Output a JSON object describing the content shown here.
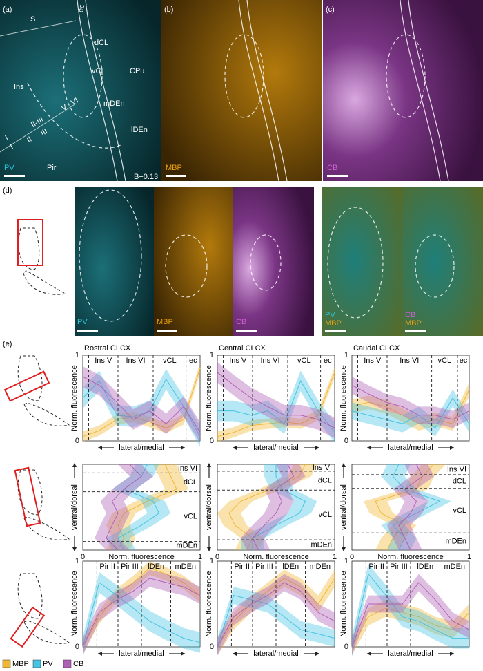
{
  "figure": {
    "row_a": {
      "panels": [
        {
          "letter": "(a)",
          "stain": "PV",
          "color": "#2cc6d6"
        },
        {
          "letter": "(b)",
          "stain": "MBP",
          "color": "#e8a010"
        },
        {
          "letter": "(c)",
          "stain": "CB",
          "color": "#c050c8"
        }
      ],
      "annotations": [
        "S",
        "ec",
        "dCL",
        "vCL",
        "CPu",
        "Ins",
        "mDEn",
        "lDEn",
        "Pir",
        "I",
        "II-III",
        "V",
        "VI",
        "I",
        "II",
        "III",
        "B+0.13"
      ]
    },
    "row_d": {
      "letter": "(d)",
      "labels": [
        "PV",
        "MBP",
        "CB",
        "PV",
        "MBP",
        "CB",
        "MBP"
      ]
    },
    "row_e": {
      "letter": "(e)"
    },
    "legend": [
      {
        "name": "MBP",
        "color": "#f2b632"
      },
      {
        "name": "PV",
        "color": "#45c4e4"
      },
      {
        "name": "CB",
        "color": "#b060b4"
      }
    ]
  },
  "chart_data": [
    {
      "type": "line",
      "orientation": "horizontal",
      "title": "Rostral CLCX",
      "x_label": "lateral/medial",
      "y_label": "Norm. fluorescence",
      "x": [
        0,
        0.14,
        0.29,
        0.43,
        0.57,
        0.71,
        0.86,
        1
      ],
      "xlim": [
        0,
        1
      ],
      "ylim": [
        0,
        1
      ],
      "yticks": [
        0,
        1
      ],
      "boundaries": [
        0.05,
        0.3,
        0.6,
        0.88
      ],
      "regions": [
        "Ins V",
        "Ins VI",
        "vCL",
        "ec"
      ],
      "series": [
        {
          "color": "#f2b632",
          "values": [
            0.05,
            0.12,
            0.25,
            0.28,
            0.22,
            0.15,
            0.25,
            0.85
          ],
          "spread": 0.06
        },
        {
          "color": "#45c4e4",
          "values": [
            0.5,
            0.7,
            0.3,
            0.28,
            0.35,
            0.72,
            0.4,
            0.05
          ],
          "spread": 0.12
        },
        {
          "color": "#b060b4",
          "values": [
            0.75,
            0.65,
            0.45,
            0.25,
            0.35,
            0.2,
            0.4,
            0.1
          ],
          "spread": 0.12
        }
      ]
    },
    {
      "type": "line",
      "orientation": "horizontal",
      "title": "Central CLCX",
      "x_label": "lateral/medial",
      "y_label": "Norm. fluorescence",
      "x": [
        0,
        0.14,
        0.29,
        0.43,
        0.57,
        0.71,
        0.86,
        1
      ],
      "xlim": [
        0,
        1
      ],
      "ylim": [
        0,
        1
      ],
      "yticks": [
        0,
        1
      ],
      "boundaries": [
        0.05,
        0.3,
        0.6,
        0.88
      ],
      "regions": [
        "Ins V",
        "Ins VI",
        "vCL",
        "ec"
      ],
      "series": [
        {
          "color": "#f2b632",
          "values": [
            0.05,
            0.1,
            0.18,
            0.2,
            0.22,
            0.2,
            0.3,
            0.8
          ],
          "spread": 0.06
        },
        {
          "color": "#45c4e4",
          "values": [
            0.35,
            0.35,
            0.3,
            0.35,
            0.2,
            0.7,
            0.35,
            0.1
          ],
          "spread": 0.12
        },
        {
          "color": "#b060b4",
          "values": [
            0.8,
            0.65,
            0.5,
            0.4,
            0.3,
            0.3,
            0.25,
            0.15
          ],
          "spread": 0.12
        }
      ]
    },
    {
      "type": "line",
      "orientation": "horizontal",
      "title": "Caudal CLCX",
      "x_label": "lateral/medial",
      "y_label": "Norm. fluorescence",
      "x": [
        0,
        0.14,
        0.29,
        0.43,
        0.57,
        0.71,
        0.86,
        1
      ],
      "xlim": [
        0,
        1
      ],
      "ylim": [
        0,
        1
      ],
      "yticks": [
        0,
        1
      ],
      "boundaries": [
        0.05,
        0.3,
        0.68,
        0.9
      ],
      "regions": [
        "Ins V",
        "Ins VI",
        "vCL",
        "ec"
      ],
      "series": [
        {
          "color": "#f2b632",
          "values": [
            0.4,
            0.45,
            0.4,
            0.3,
            0.2,
            0.25,
            0.2,
            0.6
          ],
          "spread": 0.08
        },
        {
          "color": "#45c4e4",
          "values": [
            0.35,
            0.3,
            0.25,
            0.2,
            0.3,
            0.15,
            0.5,
            0.2
          ],
          "spread": 0.1
        },
        {
          "color": "#b060b4",
          "values": [
            0.65,
            0.55,
            0.45,
            0.4,
            0.3,
            0.3,
            0.25,
            0.35
          ],
          "spread": 0.1
        }
      ]
    },
    {
      "type": "line",
      "orientation": "vertical",
      "x_label": "Norm. fluorescence",
      "y_label": "ventral/dorsal",
      "y": [
        0,
        0.14,
        0.29,
        0.43,
        0.57,
        0.71,
        0.86,
        1
      ],
      "xlim": [
        0,
        1
      ],
      "ylim": [
        0,
        1
      ],
      "xticks": [
        0,
        1
      ],
      "boundaries": [
        0.9,
        0.68,
        0.1
      ],
      "regions": [
        "Ins VI",
        "dCL",
        "vCL",
        "mDEn"
      ],
      "series": [
        {
          "color": "#f2b632",
          "values": [
            0.3,
            0.35,
            0.3,
            0.35,
            0.55,
            0.8,
            0.75,
            0.7
          ],
          "spread": 0.1
        },
        {
          "color": "#45c4e4",
          "values": [
            0.35,
            0.3,
            0.5,
            0.65,
            0.6,
            0.35,
            0.5,
            0.55
          ],
          "spread": 0.1
        },
        {
          "color": "#b060b4",
          "values": [
            0.3,
            0.2,
            0.25,
            0.3,
            0.25,
            0.35,
            0.5,
            0.4
          ],
          "spread": 0.1
        }
      ]
    },
    {
      "type": "line",
      "orientation": "vertical",
      "x_label": "Norm. fluorescence",
      "y_label": "ventral/dorsal",
      "y": [
        0,
        0.14,
        0.29,
        0.43,
        0.57,
        0.71,
        0.86,
        1
      ],
      "xlim": [
        0,
        1
      ],
      "ylim": [
        0,
        1
      ],
      "xticks": [
        0,
        1
      ],
      "boundaries": [
        0.92,
        0.7,
        0.12
      ],
      "regions": [
        "Ins VI",
        "dCL",
        "vCL",
        "mDEn"
      ],
      "series": [
        {
          "color": "#f2b632",
          "values": [
            0.25,
            0.3,
            0.15,
            0.1,
            0.2,
            0.45,
            0.7,
            0.75
          ],
          "spread": 0.1
        },
        {
          "color": "#45c4e4",
          "values": [
            0.3,
            0.3,
            0.5,
            0.7,
            0.75,
            0.55,
            0.5,
            0.5
          ],
          "spread": 0.1
        },
        {
          "color": "#b060b4",
          "values": [
            0.35,
            0.3,
            0.4,
            0.5,
            0.55,
            0.5,
            0.65,
            0.6
          ],
          "spread": 0.1
        }
      ]
    },
    {
      "type": "line",
      "orientation": "vertical",
      "x_label": "Norm. fluorescence",
      "y_label": "ventral/dorsal",
      "y": [
        0,
        0.14,
        0.29,
        0.43,
        0.57,
        0.71,
        0.86,
        1
      ],
      "xlim": [
        0,
        1
      ],
      "ylim": [
        0,
        1
      ],
      "xticks": [
        0,
        1
      ],
      "boundaries": [
        0.88,
        0.72,
        0.2
      ],
      "regions": [
        "Ins VI",
        "dCL",
        "vCL",
        "mDEn"
      ],
      "series": [
        {
          "color": "#f2b632",
          "values": [
            0.3,
            0.35,
            0.45,
            0.25,
            0.2,
            0.55,
            0.6,
            0.7
          ],
          "spread": 0.1
        },
        {
          "color": "#45c4e4",
          "values": [
            0.4,
            0.45,
            0.35,
            0.55,
            0.75,
            0.45,
            0.35,
            0.4
          ],
          "spread": 0.1
        },
        {
          "color": "#b060b4",
          "values": [
            0.5,
            0.45,
            0.4,
            0.5,
            0.55,
            0.45,
            0.6,
            0.55
          ],
          "spread": 0.1
        }
      ]
    },
    {
      "type": "line",
      "orientation": "horizontal",
      "x_label": "lateral/medial",
      "y_label": "Norm. fluorescence",
      "x": [
        0,
        0.14,
        0.29,
        0.43,
        0.57,
        0.71,
        0.86,
        1
      ],
      "xlim": [
        0,
        1
      ],
      "ylim": [
        0,
        1
      ],
      "yticks": [
        0,
        1
      ],
      "boundaries": [
        0.12,
        0.3,
        0.5,
        0.75
      ],
      "regions": [
        "Pir II",
        "Pir III",
        "lDEn",
        "mDEn"
      ],
      "series": [
        {
          "color": "#f2b632",
          "values": [
            0,
            0.35,
            0.6,
            0.75,
            0.92,
            0.85,
            0.75,
            0.6
          ],
          "spread": 0.08
        },
        {
          "color": "#45c4e4",
          "values": [
            0,
            0.75,
            0.6,
            0.45,
            0.3,
            0.2,
            0.1,
            0.05
          ],
          "spread": 0.12
        },
        {
          "color": "#b060b4",
          "values": [
            0,
            0.4,
            0.55,
            0.65,
            0.8,
            0.75,
            0.7,
            0.6
          ],
          "spread": 0.1
        }
      ]
    },
    {
      "type": "line",
      "orientation": "horizontal",
      "x_label": "lateral/medial",
      "y_label": "Norm. fluorescence",
      "x": [
        0,
        0.14,
        0.29,
        0.43,
        0.57,
        0.71,
        0.86,
        1
      ],
      "xlim": [
        0,
        1
      ],
      "ylim": [
        0,
        1
      ],
      "yticks": [
        0,
        1
      ],
      "boundaries": [
        0.12,
        0.3,
        0.5,
        0.75
      ],
      "regions": [
        "Pir II",
        "Pir III",
        "lDEn",
        "mDEn"
      ],
      "series": [
        {
          "color": "#f2b632",
          "values": [
            0,
            0.3,
            0.5,
            0.65,
            0.8,
            0.7,
            0.5,
            0.8
          ],
          "spread": 0.1
        },
        {
          "color": "#45c4e4",
          "values": [
            0,
            0.6,
            0.55,
            0.5,
            0.35,
            0.2,
            0.15,
            0.1
          ],
          "spread": 0.1
        },
        {
          "color": "#b060b4",
          "values": [
            0,
            0.35,
            0.5,
            0.6,
            0.75,
            0.65,
            0.4,
            0.3
          ],
          "spread": 0.1
        }
      ]
    },
    {
      "type": "line",
      "orientation": "horizontal",
      "x_label": "lateral/medial",
      "y_label": "Norm. fluorescence",
      "x": [
        0,
        0.14,
        0.29,
        0.43,
        0.57,
        0.71,
        0.86,
        1
      ],
      "xlim": [
        0,
        1
      ],
      "ylim": [
        0,
        1
      ],
      "yticks": [
        0,
        1
      ],
      "boundaries": [
        0.12,
        0.3,
        0.5,
        0.75
      ],
      "regions": [
        "Pir II",
        "Pir III",
        "lDEn",
        "mDEn"
      ],
      "series": [
        {
          "color": "#f2b632",
          "values": [
            0,
            0.35,
            0.45,
            0.4,
            0.35,
            0.25,
            0.2,
            0.4
          ],
          "spread": 0.1
        },
        {
          "color": "#45c4e4",
          "values": [
            0,
            0.85,
            0.6,
            0.35,
            0.3,
            0.2,
            0.1,
            0.1
          ],
          "spread": 0.12
        },
        {
          "color": "#b060b4",
          "values": [
            0,
            0.5,
            0.5,
            0.5,
            0.75,
            0.55,
            0.3,
            0.2
          ],
          "spread": 0.1
        }
      ]
    }
  ]
}
